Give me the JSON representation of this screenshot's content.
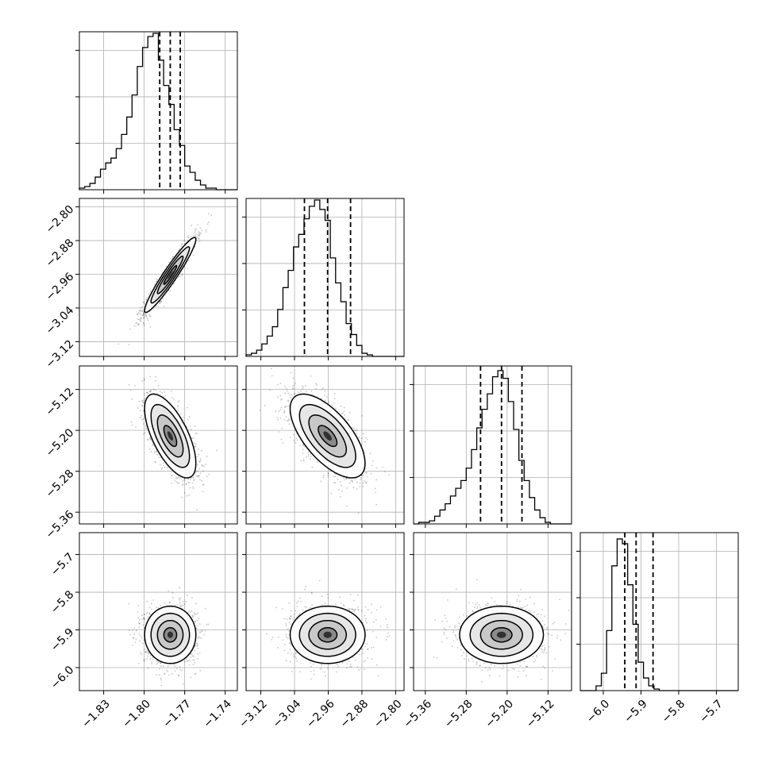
{
  "figure": {
    "type": "corner-plot",
    "grid": true,
    "variables": [
      {
        "ticks": [
          -1.83,
          -1.8,
          -1.77,
          -1.74
        ],
        "tick_labels": [
          "−1.83",
          "−1.80",
          "−1.77",
          "−1.74"
        ],
        "range": [
          -1.848,
          -1.731
        ]
      },
      {
        "ticks": [
          -3.12,
          -3.04,
          -2.96,
          -2.88,
          -2.8
        ],
        "tick_labels": [
          "−3.12",
          "−3.04",
          "−2.96",
          "−2.88",
          "−2.80"
        ],
        "range": [
          -3.155,
          -2.78
        ]
      },
      {
        "ticks": [
          -5.36,
          -5.28,
          -5.2,
          -5.12
        ],
        "tick_labels": [
          "−5.36",
          "−5.28",
          "−5.20",
          "−5.12"
        ],
        "range": [
          -5.383,
          -5.074
        ]
      },
      {
        "ticks": [
          -6.0,
          -5.9,
          -5.8,
          -5.7
        ],
        "tick_labels": [
          "−6.0",
          "−5.9",
          "−5.8",
          "−5.7"
        ],
        "range": [
          -6.061,
          -5.642
        ]
      }
    ]
  },
  "chart_data": [
    {
      "type": "histogram",
      "variable": 0,
      "bin_edges": [
        -1.848,
        -1.731
      ],
      "counts": [
        1,
        2,
        4,
        8,
        13,
        17,
        20,
        26,
        35,
        46,
        60,
        78,
        90,
        97,
        99,
        82,
        66,
        54,
        38,
        28,
        15,
        11,
        6,
        3,
        1,
        1,
        0,
        0,
        0,
        0
      ],
      "quantiles": [
        -1.7885,
        -1.7807,
        -1.7733
      ],
      "ylim": [
        0,
        100
      ]
    },
    {
      "type": "histogram",
      "variable": 1,
      "bin_edges": [
        -3.155,
        -2.78
      ],
      "counts": [
        1,
        2,
        4,
        8,
        13,
        19,
        30,
        44,
        55,
        70,
        78,
        88,
        96,
        100,
        94,
        87,
        63,
        47,
        35,
        21,
        14,
        7,
        2,
        1,
        0,
        0,
        0,
        0,
        0,
        0
      ],
      "quantiles": [
        -3.0165,
        -2.9615,
        -2.907
      ],
      "ylim": [
        0,
        101
      ]
    },
    {
      "type": "histogram",
      "variable": 2,
      "bin_edges": [
        -5.383,
        -5.074
      ],
      "counts": [
        0,
        1,
        1,
        2,
        5,
        9,
        13,
        18,
        23,
        28,
        36,
        48,
        62,
        74,
        84,
        95,
        99,
        94,
        79,
        61,
        41,
        28,
        17,
        9,
        4,
        1,
        0,
        0,
        0,
        0
      ],
      "quantiles": [
        -5.252,
        -5.211,
        -5.171
      ],
      "ylim": [
        0,
        102
      ]
    },
    {
      "type": "histogram",
      "variable": 3,
      "bin_edges": [
        -6.061,
        -5.642
      ],
      "counts": [
        0,
        0,
        0,
        3,
        11,
        38,
        79,
        96,
        93,
        67,
        42,
        18,
        8,
        3,
        1,
        0,
        0,
        0,
        0,
        0,
        0,
        0,
        0,
        0,
        0,
        0,
        0,
        0,
        0,
        0
      ],
      "quantiles": [
        -5.943,
        -5.913,
        -5.868
      ],
      "ylim": [
        0,
        100
      ]
    },
    {
      "type": "scatter+contour",
      "x_var": 0,
      "y_var": 1,
      "center": [
        -1.7807,
        -2.9615
      ],
      "sigma": [
        0.0095,
        0.0445
      ],
      "corr": 0.95
    },
    {
      "type": "scatter+contour",
      "x_var": 0,
      "y_var": 2,
      "center": [
        -1.7807,
        -5.211
      ],
      "sigma": [
        0.0095,
        0.041
      ],
      "corr": -0.65
    },
    {
      "type": "scatter+contour",
      "x_var": 1,
      "y_var": 2,
      "center": [
        -2.9615,
        -5.211
      ],
      "sigma": [
        0.0445,
        0.041
      ],
      "corr": -0.65
    },
    {
      "type": "scatter+contour",
      "x_var": 0,
      "y_var": 3,
      "center": [
        -1.7807,
        -5.913
      ],
      "sigma": [
        0.0095,
        0.038
      ],
      "corr": 0.0
    },
    {
      "type": "scatter+contour",
      "x_var": 1,
      "y_var": 3,
      "center": [
        -2.9615,
        -5.913
      ],
      "sigma": [
        0.0445,
        0.038
      ],
      "corr": 0.0
    },
    {
      "type": "scatter+contour",
      "x_var": 2,
      "y_var": 3,
      "center": [
        -5.211,
        -5.913
      ],
      "sigma": [
        0.041,
        0.038
      ],
      "corr": 0.0
    }
  ],
  "colors": {
    "line": "#000000",
    "grid": "#b0b0b0",
    "points": "#000000"
  }
}
